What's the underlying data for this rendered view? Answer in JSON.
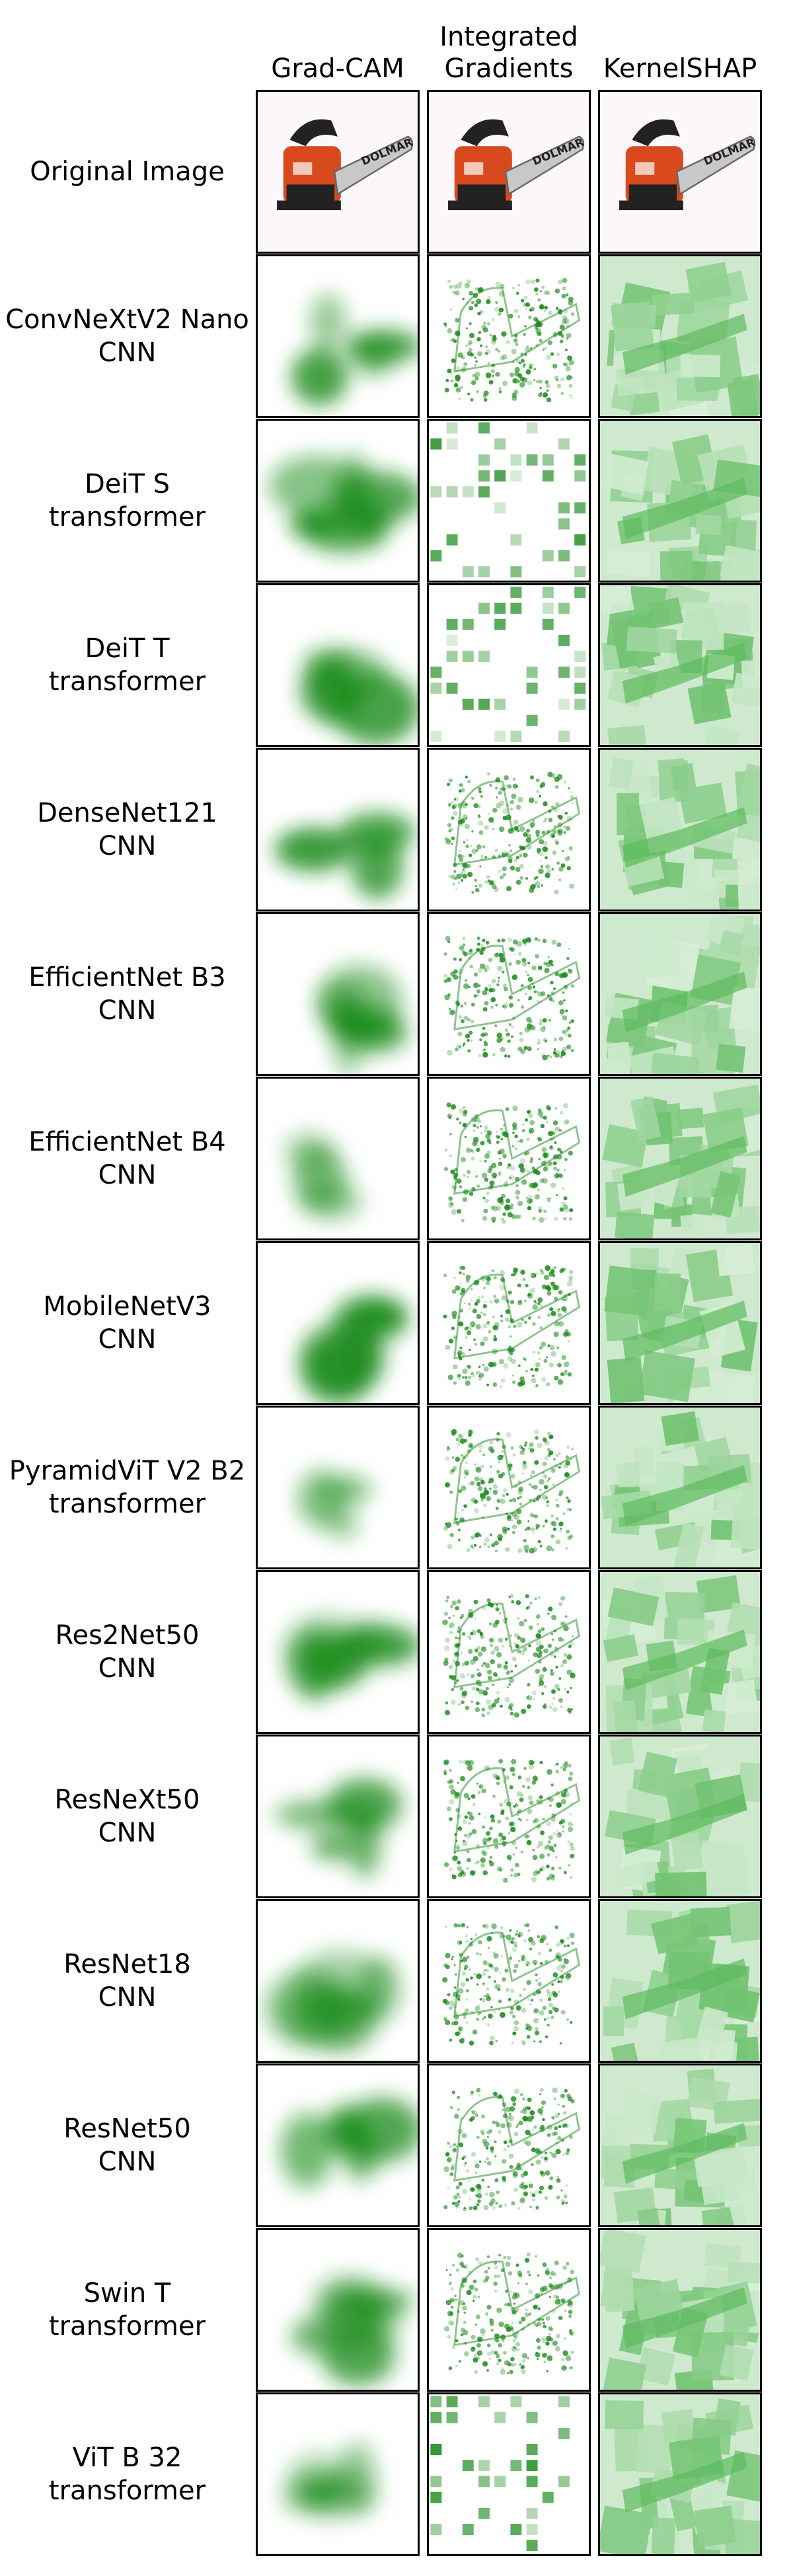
{
  "columns": [
    "Grad-CAM",
    "Integrated\nGradients",
    "KernelSHAP"
  ],
  "original_row_label": "Original Image",
  "chainsaw_brand": "DOLMAR",
  "colors": {
    "attribution": "#1a8a1a",
    "border": "#000000",
    "saw_red": "#d84a1e",
    "saw_black": "#222222",
    "bar_gray": "#c8c8c8"
  },
  "rows": [
    {
      "model": "ConvNeXtV2 Nano",
      "family": "CNN"
    },
    {
      "model": "DeiT S",
      "family": "transformer"
    },
    {
      "model": "DeiT T",
      "family": "transformer"
    },
    {
      "model": "DenseNet121",
      "family": "CNN"
    },
    {
      "model": "EfficientNet B3",
      "family": "CNN"
    },
    {
      "model": "EfficientNet B4",
      "family": "CNN"
    },
    {
      "model": "MobileNetV3",
      "family": "CNN"
    },
    {
      "model": "PyramidViT V2 B2",
      "family": "transformer"
    },
    {
      "model": "Res2Net50",
      "family": "CNN"
    },
    {
      "model": "ResNeXt50",
      "family": "CNN"
    },
    {
      "model": "ResNet18",
      "family": "CNN"
    },
    {
      "model": "ResNet50",
      "family": "CNN"
    },
    {
      "model": "Swin T",
      "family": "transformer"
    },
    {
      "model": "ViT B 32",
      "family": "transformer"
    }
  ]
}
